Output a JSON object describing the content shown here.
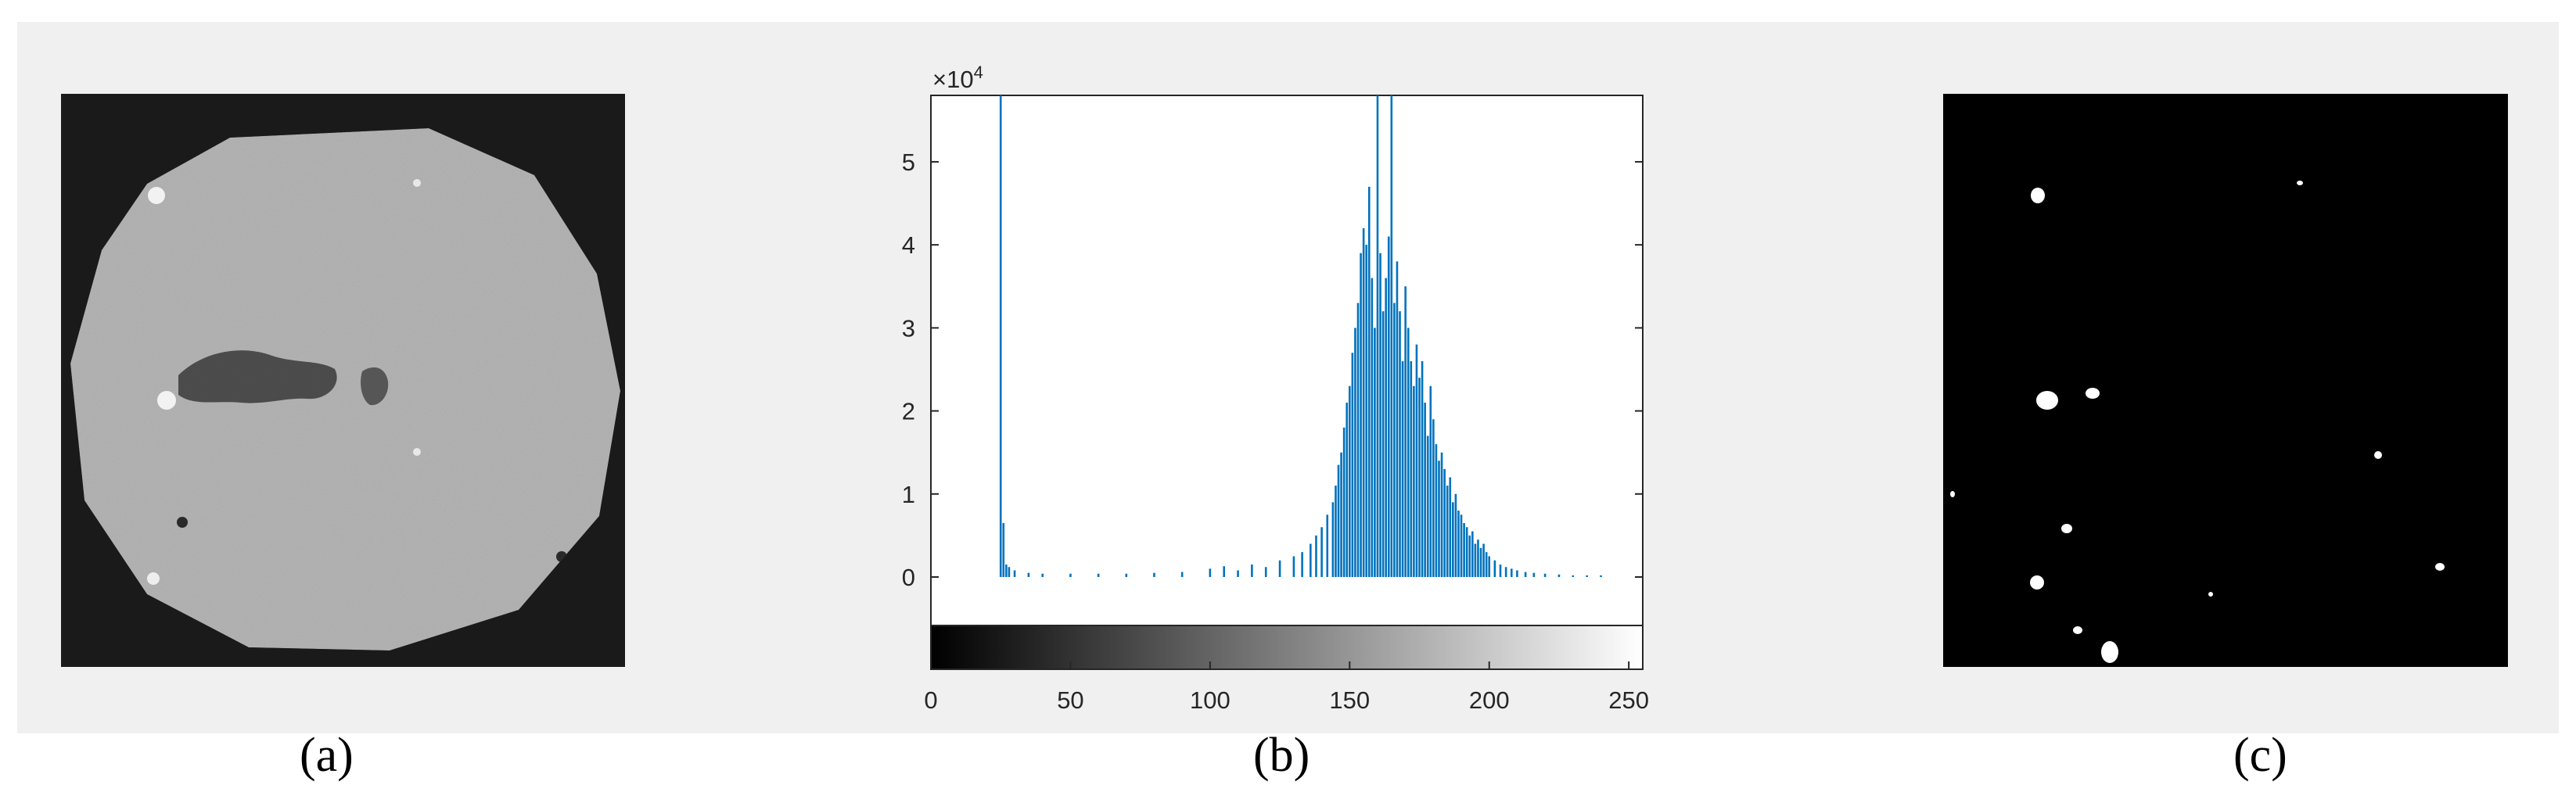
{
  "captions": {
    "a": "(a)",
    "b": "(b)",
    "c": "(c)"
  },
  "chart_data": {
    "type": "bar",
    "title": "",
    "xlabel": "",
    "ylabel": "",
    "y_exponent_label": "×10",
    "y_exponent_power": "4",
    "xlim": [
      0,
      255
    ],
    "ylim": [
      0,
      5.8
    ],
    "x_ticks": [
      "0",
      "50",
      "100",
      "150",
      "200",
      "250"
    ],
    "y_ticks": [
      "0",
      "1",
      "2",
      "3",
      "4",
      "5"
    ],
    "grid": false,
    "legend": "none",
    "colorbar": "grayscale 0-255 below x-axis",
    "bar_color": "#0072bd",
    "bins_x": [
      25,
      26,
      27,
      28,
      30,
      35,
      40,
      50,
      60,
      70,
      80,
      90,
      100,
      105,
      110,
      115,
      120,
      125,
      130,
      133,
      136,
      138,
      140,
      142,
      144,
      145,
      146,
      147,
      148,
      149,
      150,
      151,
      152,
      153,
      154,
      155,
      156,
      157,
      158,
      159,
      160,
      161,
      162,
      163,
      164,
      165,
      166,
      167,
      168,
      169,
      170,
      171,
      172,
      173,
      174,
      175,
      176,
      177,
      178,
      179,
      180,
      181,
      182,
      183,
      184,
      185,
      186,
      187,
      188,
      189,
      190,
      191,
      192,
      193,
      194,
      195,
      196,
      197,
      198,
      199,
      200,
      202,
      204,
      206,
      208,
      210,
      213,
      216,
      220,
      225,
      230,
      235,
      240
    ],
    "bins_y": [
      5.8,
      0.65,
      0.15,
      0.12,
      0.08,
      0.05,
      0.04,
      0.04,
      0.04,
      0.04,
      0.05,
      0.06,
      0.1,
      0.13,
      0.08,
      0.15,
      0.12,
      0.2,
      0.25,
      0.3,
      0.4,
      0.5,
      0.6,
      0.75,
      0.9,
      1.1,
      1.35,
      1.5,
      1.8,
      2.1,
      2.3,
      2.7,
      3.0,
      3.3,
      3.9,
      4.2,
      4.0,
      4.7,
      3.6,
      3.0,
      5.8,
      3.9,
      3.2,
      3.6,
      4.1,
      5.8,
      3.3,
      3.8,
      3.2,
      2.6,
      3.5,
      3.0,
      2.6,
      2.3,
      2.8,
      2.4,
      2.6,
      2.1,
      1.7,
      2.3,
      1.9,
      1.6,
      1.4,
      1.5,
      1.3,
      1.1,
      1.2,
      0.9,
      1.0,
      0.8,
      0.75,
      0.65,
      0.6,
      0.5,
      0.55,
      0.4,
      0.45,
      0.35,
      0.4,
      0.3,
      0.25,
      0.2,
      0.15,
      0.12,
      0.1,
      0.08,
      0.06,
      0.05,
      0.04,
      0.03,
      0.02,
      0.02,
      0.02
    ]
  },
  "ct_slice": {
    "background_color": "#1a1a1a",
    "sample_color": "#a9a9a9"
  },
  "binary_map": {
    "background_color": "#000000",
    "particle_color": "#ffffff"
  }
}
